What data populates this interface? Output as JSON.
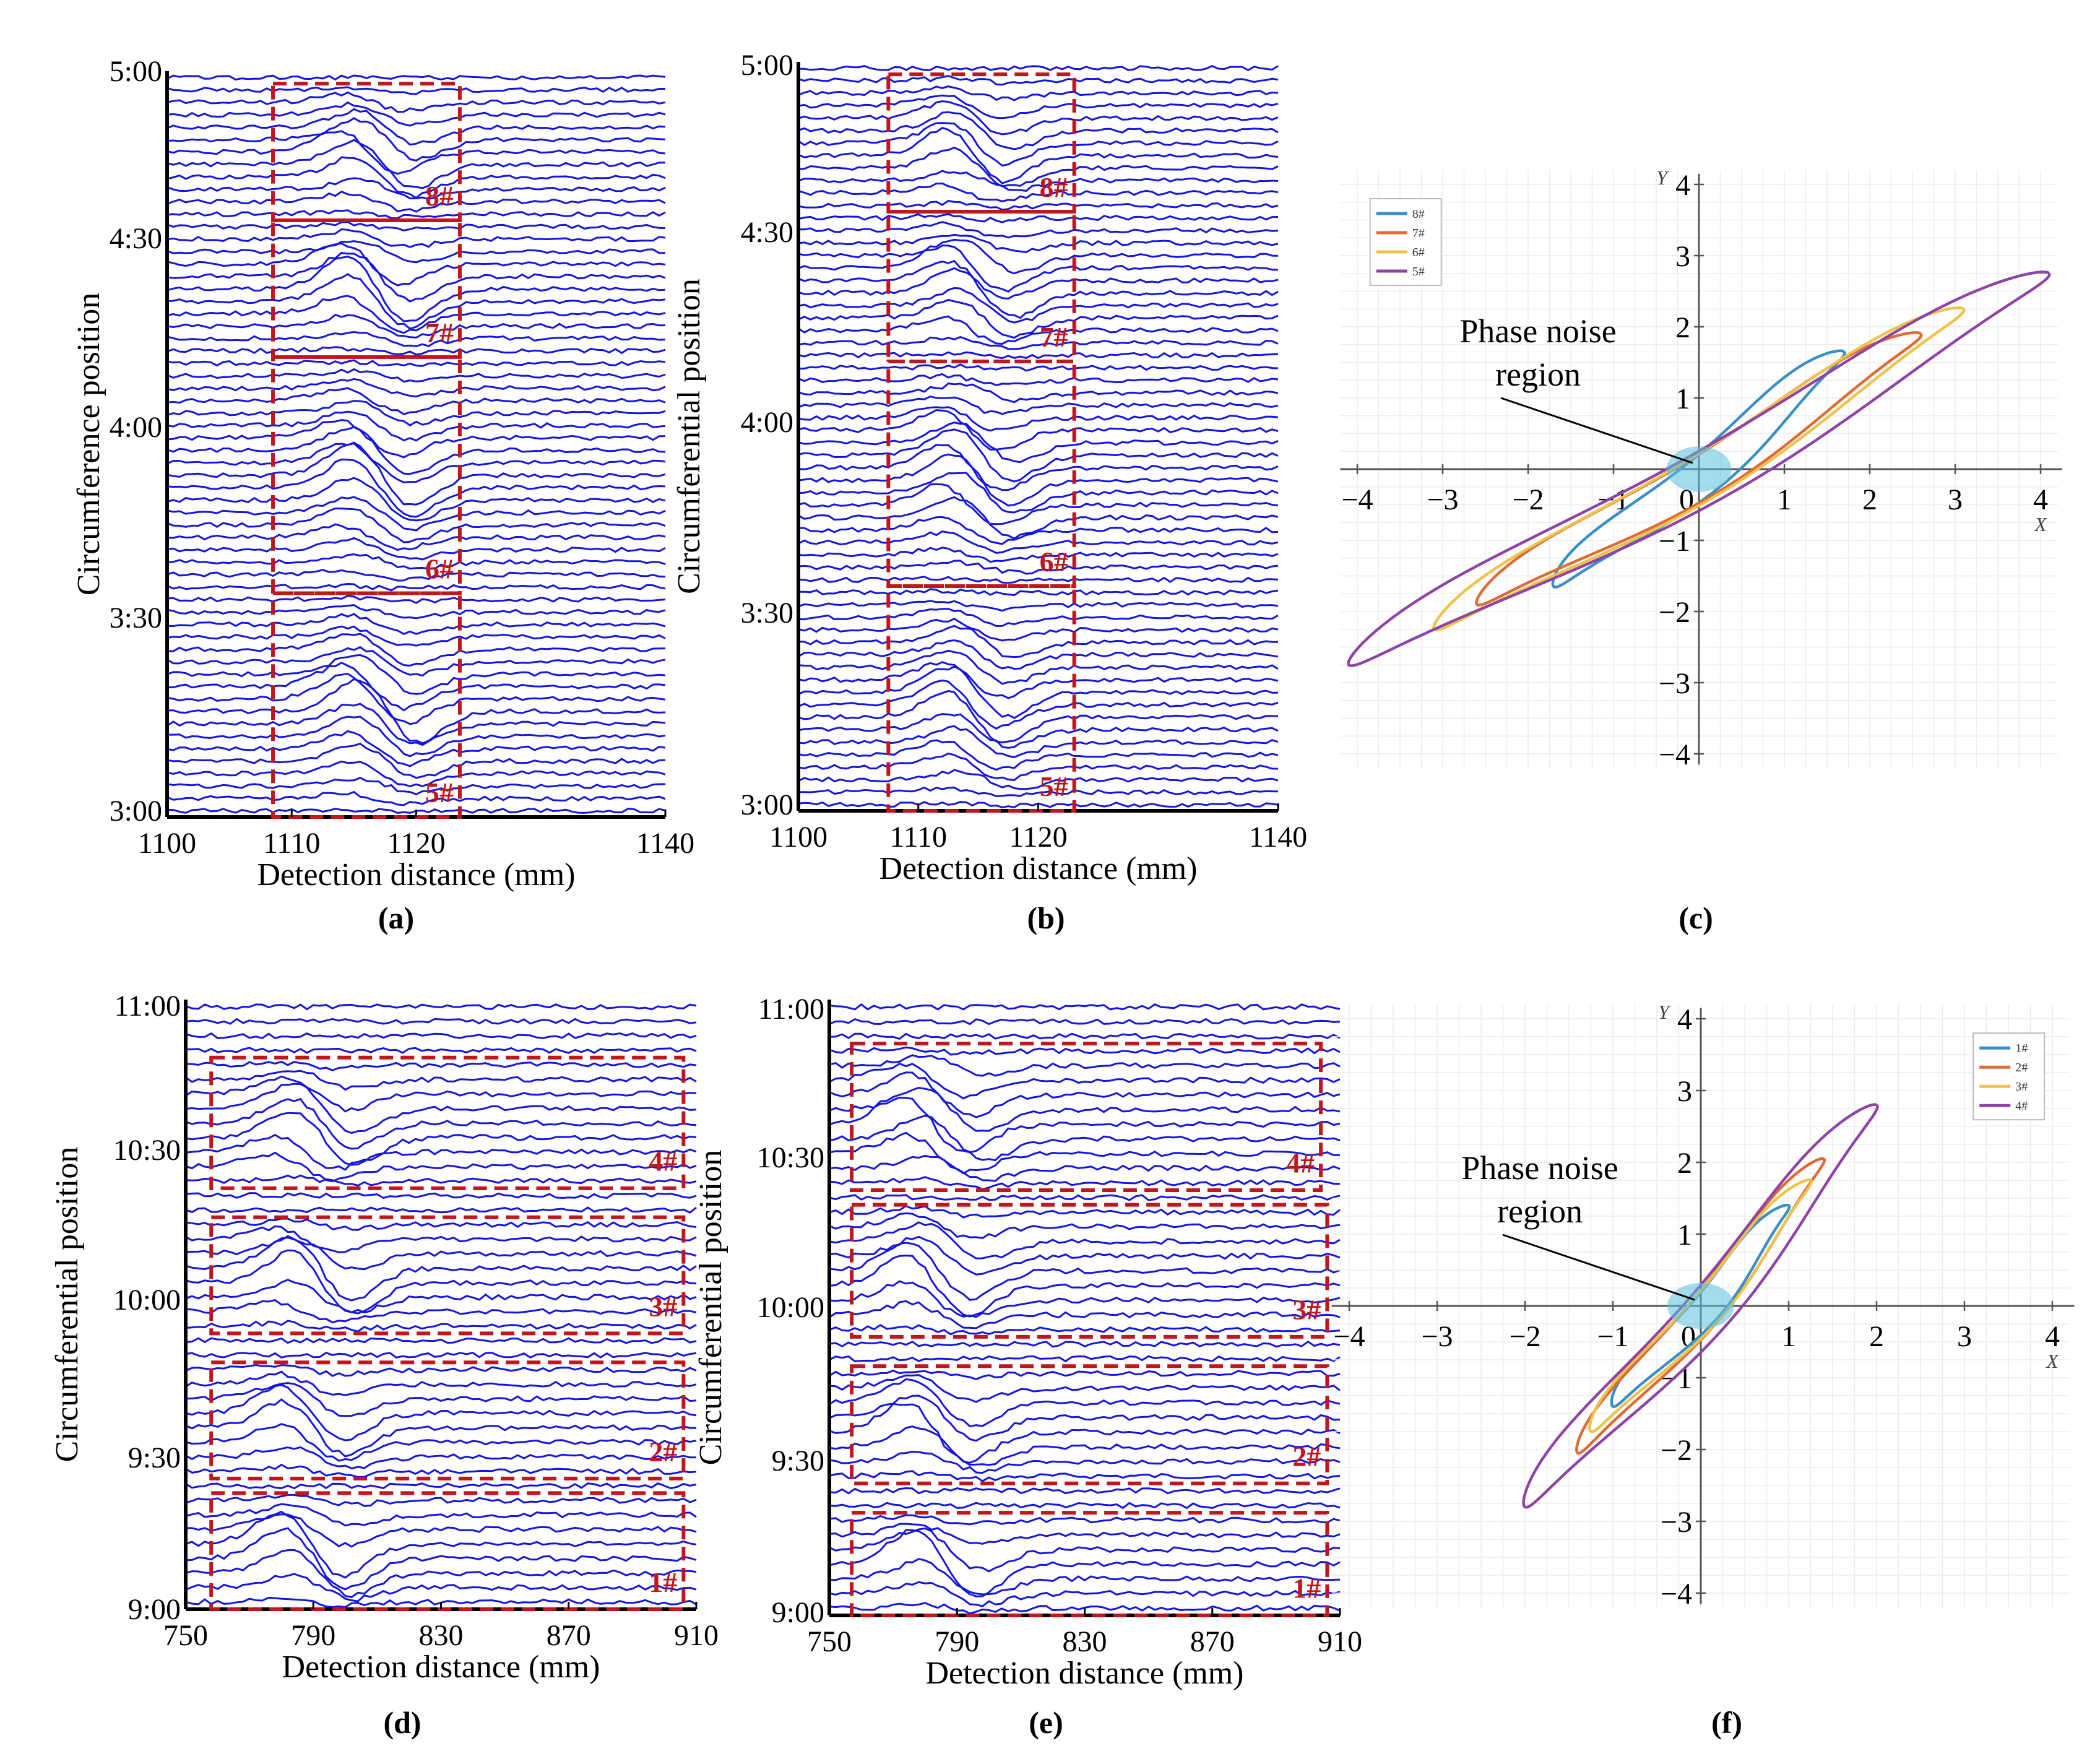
{
  "chart_data": [
    {
      "id": "a",
      "type": "line",
      "panel_label": "(a)",
      "ylabel": "Circumference position",
      "xlabel": "Detection distance (mm)",
      "xlim": [
        1100,
        1140
      ],
      "x_ticks": [
        "1100",
        "1110",
        "1120",
        "1140"
      ],
      "x_tick_values": [
        1100,
        1110,
        1120,
        1140
      ],
      "y_ticks": [
        "5:00",
        "4:30",
        "4:00",
        "3:30",
        "3:00"
      ],
      "line_count": 60,
      "signal_center": 1117,
      "signal_width": 3.5,
      "line_color": "#1515e0",
      "regions": [
        {
          "label": "8#",
          "x": [
            1108.5,
            1123.5
          ],
          "rows": [
            1,
            11
          ]
        },
        {
          "label": "7#",
          "x": [
            1108.5,
            1123.5
          ],
          "rows": [
            12,
            22
          ]
        },
        {
          "label": "6#",
          "x": [
            1108.5,
            1123.5
          ],
          "rows": [
            23,
            41
          ]
        },
        {
          "label": "5#",
          "x": [
            1108.5,
            1123.5
          ],
          "rows": [
            42,
            59
          ]
        }
      ]
    },
    {
      "id": "b",
      "type": "line",
      "panel_label": "(b)",
      "ylabel": "Circumferential position",
      "xlabel": "Detection distance (mm)",
      "xlim": [
        1100,
        1140
      ],
      "x_ticks": [
        "1100",
        "1110",
        "1120",
        "1140"
      ],
      "x_tick_values": [
        1100,
        1110,
        1120,
        1140
      ],
      "y_ticks": [
        "5:00",
        "4:30",
        "4:00",
        "3:30",
        "3:00"
      ],
      "line_count": 60,
      "signal_center": 1115,
      "signal_width": 3.5,
      "line_color": "#1515e0",
      "regions": [
        {
          "label": "8#",
          "x": [
            1107.5,
            1123
          ],
          "rows": [
            1,
            11
          ]
        },
        {
          "label": "7#",
          "x": [
            1107.5,
            1123
          ],
          "rows": [
            12,
            23
          ]
        },
        {
          "label": "6#",
          "x": [
            1107.5,
            1123
          ],
          "rows": [
            24,
            41
          ]
        },
        {
          "label": "5#",
          "x": [
            1107.5,
            1123
          ],
          "rows": [
            42,
            59
          ]
        }
      ]
    },
    {
      "id": "c",
      "type": "line",
      "panel_label": "(c)",
      "xlabel": "X",
      "ylabel": "Y",
      "xlim": [
        -4,
        4
      ],
      "ylim": [
        -4,
        4
      ],
      "x_ticks": [
        "−4",
        "−3",
        "−2",
        "−1",
        "0",
        "1",
        "2",
        "3",
        "4"
      ],
      "y_ticks": [
        "4",
        "3",
        "2",
        "1",
        "−1",
        "−2",
        "−3",
        "−4"
      ],
      "annotation": [
        "Phase noise",
        "region"
      ],
      "series": [
        {
          "name": "8#",
          "color": "#3a8fc7",
          "peak": [
            1.7,
            1.65
          ],
          "width": 0.25
        },
        {
          "name": "7#",
          "color": "#e06a33",
          "peak": [
            2.6,
            1.9
          ],
          "width": 0.28
        },
        {
          "name": "6#",
          "color": "#eec24b",
          "peak": [
            3.1,
            2.25
          ],
          "width": 0.3
        },
        {
          "name": "5#",
          "color": "#8e44a6",
          "peak": [
            4.1,
            2.75
          ],
          "width": 0.35
        }
      ]
    },
    {
      "id": "d",
      "type": "line",
      "panel_label": "(d)",
      "ylabel": "Circumferential position",
      "xlabel": "Detection distance (mm)",
      "xlim": [
        750,
        910
      ],
      "x_ticks": [
        "750",
        "790",
        "830",
        "870",
        "910"
      ],
      "x_tick_values": [
        750,
        790,
        830,
        870,
        910
      ],
      "y_ticks": [
        "11:00",
        "10:30",
        "10:00",
        "9:30",
        "9:00"
      ],
      "line_count": 42,
      "signal_center": 790,
      "signal_width": 14,
      "line_color": "#1515e0",
      "regions": [
        {
          "label": "4#",
          "x": [
            758,
            906
          ],
          "rows": [
            4,
            12
          ]
        },
        {
          "label": "3#",
          "x": [
            758,
            906
          ],
          "rows": [
            15,
            22
          ]
        },
        {
          "label": "2#",
          "x": [
            758,
            906
          ],
          "rows": [
            25,
            32
          ]
        },
        {
          "label": "1#",
          "x": [
            758,
            906
          ],
          "rows": [
            34,
            41
          ]
        }
      ]
    },
    {
      "id": "e",
      "type": "line",
      "panel_label": "(e)",
      "ylabel": "Circumferential position",
      "xlabel": "Detection distance (mm)",
      "xlim": [
        750,
        910
      ],
      "x_ticks": [
        "750",
        "790",
        "830",
        "870",
        "910"
      ],
      "x_tick_values": [
        750,
        790,
        830,
        870,
        910
      ],
      "y_ticks": [
        "11:00",
        "10:30",
        "10:00",
        "9:30",
        "9:00"
      ],
      "line_count": 42,
      "signal_center": 786,
      "signal_width": 14,
      "line_color": "#1515e0",
      "regions": [
        {
          "label": "4#",
          "x": [
            757,
            904
          ],
          "rows": [
            3,
            12
          ]
        },
        {
          "label": "3#",
          "x": [
            757,
            906
          ],
          "rows": [
            14,
            22
          ]
        },
        {
          "label": "2#",
          "x": [
            757,
            906
          ],
          "rows": [
            25,
            32
          ]
        },
        {
          "label": "1#",
          "x": [
            757,
            906
          ],
          "rows": [
            35,
            41
          ]
        }
      ]
    },
    {
      "id": "f",
      "type": "line",
      "panel_label": "(f)",
      "xlabel": "X",
      "ylabel": "Y",
      "xlim": [
        -4,
        4
      ],
      "ylim": [
        -4,
        4
      ],
      "x_ticks": [
        "−4",
        "−3",
        "−2",
        "−1",
        "0",
        "1",
        "2",
        "3",
        "4"
      ],
      "y_ticks": [
        "4",
        "3",
        "2",
        "1",
        "−1",
        "−2",
        "−3",
        "−4"
      ],
      "annotation": [
        "Phase noise",
        "region"
      ],
      "series": [
        {
          "name": "1#",
          "color": "#3a8fc7",
          "peak": [
            1.0,
            1.4
          ],
          "width": 0.18
        },
        {
          "name": "2#",
          "color": "#e06a33",
          "peak": [
            1.4,
            2.05
          ],
          "width": 0.2
        },
        {
          "name": "3#",
          "color": "#eec24b",
          "peak": [
            1.25,
            1.75
          ],
          "width": 0.2
        },
        {
          "name": "4#",
          "color": "#8e44a6",
          "peak": [
            2.0,
            2.8
          ],
          "width": 0.28
        }
      ]
    }
  ]
}
